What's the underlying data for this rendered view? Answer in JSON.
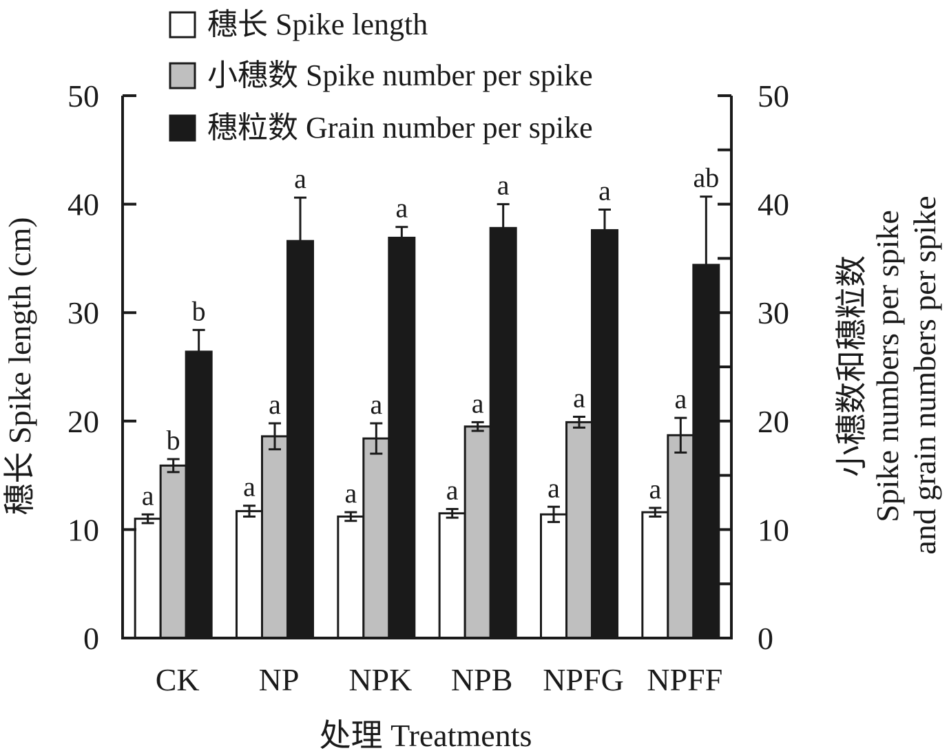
{
  "chart_data": {
    "type": "bar",
    "xlabel": "处理 Treatments",
    "ylabel_left": "穗长 Spike length (cm)",
    "ylabel_right": [
      "小穗数和穗粒数",
      "Spike numbers per spike",
      "and grain numbers per spike"
    ],
    "ylim": [
      0,
      50
    ],
    "yticks": [
      0,
      10,
      20,
      30,
      40,
      50
    ],
    "grid": false,
    "legend_position": "top-left",
    "categories": [
      "CK",
      "NP",
      "NPK",
      "NPB",
      "NPFG",
      "NPFF"
    ],
    "series": [
      {
        "name": "穗长 Spike length",
        "axis": "left",
        "color": "#ffffff",
        "values": [
          11.0,
          11.7,
          11.2,
          11.5,
          11.4,
          11.6
        ],
        "errors": [
          0.4,
          0.5,
          0.4,
          0.4,
          0.7,
          0.4
        ],
        "letters": [
          "a",
          "a",
          "a",
          "a",
          "a",
          "a"
        ]
      },
      {
        "name": "小穗数 Spike number per spike",
        "axis": "right",
        "color": "#bfbfbf",
        "values": [
          15.9,
          18.6,
          18.4,
          19.5,
          19.9,
          18.7
        ],
        "errors": [
          0.6,
          1.2,
          1.4,
          0.4,
          0.5,
          1.6
        ],
        "letters": [
          "b",
          "a",
          "a",
          "a",
          "a",
          "a"
        ]
      },
      {
        "name": "穗粒数 Grain number per spike",
        "axis": "right",
        "color": "#1a1a1a",
        "values": [
          26.4,
          36.6,
          36.9,
          37.8,
          37.6,
          34.4
        ],
        "errors": [
          2.0,
          4.0,
          1.0,
          2.2,
          1.9,
          6.3
        ],
        "letters": [
          "b",
          "a",
          "a",
          "a",
          "a",
          "ab"
        ]
      }
    ]
  }
}
